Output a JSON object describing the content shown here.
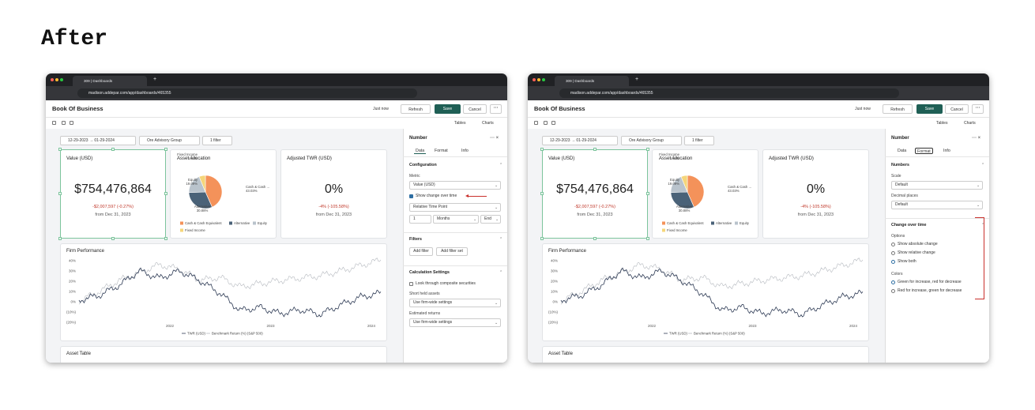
{
  "heading": "After",
  "windows": [
    {
      "tab": "309 | Dashboards",
      "url": "madison.addepar.com/app/dashboards/465355",
      "title": "Book Of Business",
      "header_buttons": [
        "Just now",
        "Refresh",
        "Save",
        "Cancel"
      ],
      "view_buttons": [
        "Tables",
        "Charts"
      ],
      "filters": [
        "12-29-2023 → 01-29-2024",
        "Ore Advisory Group",
        "1 filter"
      ],
      "value_card": {
        "title": "Value (USD)",
        "value": "$754,476,864",
        "change": "-$2,007,597 (-0.27%)",
        "from": "from Dec 31, 2023"
      },
      "allocation": {
        "title": "Asset Allocation",
        "slices": [
          {
            "name": "Cash & Cash Equivalent",
            "label": "Cash & Cash ...",
            "value": 43.03,
            "value_label": "43.03%",
            "color": "#f4925a"
          },
          {
            "name": "Alternative",
            "label": "Alternative",
            "value": 30.88,
            "value_label": "30.88%",
            "color": "#4a6278"
          },
          {
            "name": "Equity",
            "label": "Equity",
            "value": 19.09,
            "value_label": "19.09%",
            "color": "#b9c3cc"
          },
          {
            "name": "Fixed Income",
            "label": "Fixed Income",
            "value": 6.14,
            "value_label": "6.14%",
            "color": "#f5d67a"
          }
        ]
      },
      "twr_card": {
        "title": "Adjusted TWR (USD)",
        "value": "0%",
        "change": "-4% (-105.58%)",
        "from": "from Dec 31, 2023"
      },
      "performance": {
        "title": "Firm Performance",
        "yticks": [
          "40%",
          "30%",
          "20%",
          "10%",
          "0%",
          "(10%)",
          "(20%)"
        ],
        "xticks": [
          "2022",
          "2023",
          "2024"
        ],
        "legend": [
          "TWR (USD)",
          "Benchmark Return (%) (S&P 500)"
        ]
      },
      "asset_table": "Asset Table",
      "panel": {
        "title": "Number",
        "tabs": [
          "Data",
          "Format",
          "Info"
        ],
        "active_tab": 0,
        "sections": [
          {
            "title": "Configuration",
            "items": [
              {
                "kind": "label",
                "text": "Metric"
              },
              {
                "kind": "select",
                "text": "Value (USD)"
              },
              {
                "kind": "checkbox",
                "text": "Show change over time",
                "checked": true
              },
              {
                "kind": "select",
                "text": "Relative Time Point"
              },
              {
                "kind": "row",
                "texts": [
                  "1",
                  "Months",
                  "End"
                ]
              }
            ]
          },
          {
            "title": "Filters",
            "items": [
              {
                "kind": "buttons",
                "texts": [
                  "Add filter",
                  "Add filter set"
                ]
              }
            ]
          },
          {
            "title": "Calculation Settings",
            "items": [
              {
                "kind": "checkbox",
                "text": "Look through composite securities",
                "checked": false
              },
              {
                "kind": "label",
                "text": "Short held assets"
              },
              {
                "kind": "select",
                "text": "Use firm-wide settings"
              },
              {
                "kind": "label",
                "text": "Estimated returns"
              },
              {
                "kind": "select",
                "text": "Use firm-wide settings"
              }
            ]
          }
        ]
      }
    },
    {
      "tab": "309 | Dashboards",
      "url": "madison.addepar.com/app/dashboards/465355",
      "title": "Book Of Business",
      "header_buttons": [
        "Just now",
        "Refresh",
        "Save",
        "Cancel"
      ],
      "view_buttons": [
        "Tables",
        "Charts"
      ],
      "filters": [
        "12-29-2023 → 01-29-2024",
        "Ore Advisory Group",
        "1 filter"
      ],
      "value_card": {
        "title": "Value (USD)",
        "value": "$754,476,864",
        "change": "-$2,007,597 (-0.27%)",
        "from": "from Dec 31, 2023"
      },
      "allocation": {
        "title": "Asset Allocation",
        "slices": [
          {
            "name": "Cash & Cash Equivalent",
            "label": "Cash & Cash ...",
            "value": 43.03,
            "value_label": "43.03%",
            "color": "#f4925a"
          },
          {
            "name": "Alternative",
            "label": "Alternative",
            "value": 30.88,
            "value_label": "30.88%",
            "color": "#4a6278"
          },
          {
            "name": "Equity",
            "label": "Equity",
            "value": 19.09,
            "value_label": "19.09%",
            "color": "#b9c3cc"
          },
          {
            "name": "Fixed Income",
            "label": "Fixed Income",
            "value": 6.14,
            "value_label": "6.14%",
            "color": "#f5d67a"
          }
        ]
      },
      "twr_card": {
        "title": "Adjusted TWR (USD)",
        "value": "0%",
        "change": "-4% (-105.58%)",
        "from": "from Dec 31, 2023"
      },
      "performance": {
        "title": "Firm Performance",
        "yticks": [
          "40%",
          "30%",
          "20%",
          "10%",
          "0%",
          "(10%)",
          "(20%)"
        ],
        "xticks": [
          "2022",
          "2023",
          "2024"
        ],
        "legend": [
          "TWR (USD)",
          "Benchmark Return (%) (S&P 500)"
        ]
      },
      "asset_table": "Asset Table",
      "panel": {
        "title": "Number",
        "tabs": [
          "Data",
          "Format",
          "Info"
        ],
        "active_tab": 1,
        "sections": [
          {
            "title": "Numbers",
            "items": [
              {
                "kind": "label",
                "text": "Scale"
              },
              {
                "kind": "select",
                "text": "Default"
              },
              {
                "kind": "label",
                "text": "Decimal places"
              },
              {
                "kind": "select",
                "text": "Default"
              }
            ]
          },
          {
            "title": "Change over time",
            "highlight": true,
            "items": [
              {
                "kind": "label",
                "text": "Options"
              },
              {
                "kind": "radio",
                "text": "Show absolute change",
                "checked": false
              },
              {
                "kind": "radio",
                "text": "Show relative change",
                "checked": false
              },
              {
                "kind": "radio",
                "text": "Show both",
                "checked": true
              },
              {
                "kind": "label",
                "text": "Colors"
              },
              {
                "kind": "radio",
                "text": "Green for increase, red for decrease",
                "checked": true
              },
              {
                "kind": "radio",
                "text": "Red for increase, green for decrease",
                "checked": false
              }
            ]
          }
        ]
      }
    }
  ]
}
